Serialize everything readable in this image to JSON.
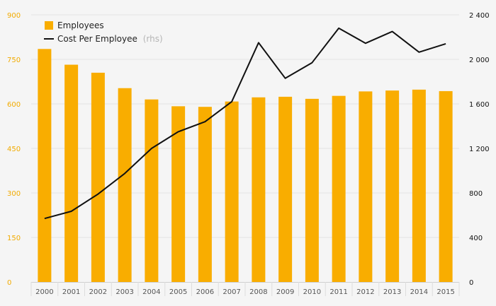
{
  "chart_data": {
    "type": "bar+line",
    "categories": [
      "2000",
      "2001",
      "2002",
      "2003",
      "2004",
      "2005",
      "2006",
      "2007",
      "2008",
      "2009",
      "2010",
      "2011",
      "2012",
      "2013",
      "2014",
      "2015"
    ],
    "series": [
      {
        "name": "Employees",
        "type": "bar",
        "axis": "left",
        "color": "#f9ad00",
        "values": [
          785,
          732,
          705,
          653,
          615,
          592,
          590,
          608,
          622,
          624,
          617,
          627,
          642,
          645,
          648,
          643
        ]
      },
      {
        "name": "Cost Per Employee",
        "type": "line",
        "axis": "right",
        "color": "#111111",
        "values": [
          570,
          635,
          790,
          975,
          1200,
          1350,
          1440,
          1620,
          2150,
          1830,
          1970,
          2280,
          2145,
          2250,
          2065,
          2140
        ]
      }
    ],
    "legend": {
      "position": "top-left",
      "items": [
        {
          "label": "Employees",
          "suffix": ""
        },
        {
          "label": "Cost Per Employee",
          "suffix": "(rhs)"
        }
      ]
    },
    "y_left": {
      "min": 0,
      "max": 900,
      "ticks": [
        0,
        150,
        300,
        450,
        600,
        750,
        900
      ],
      "tick_labels": [
        "0",
        "150",
        "300",
        "450",
        "600",
        "750",
        "900"
      ],
      "color": "#f2ab00"
    },
    "y_right": {
      "min": 0,
      "max": 2400,
      "ticks": [
        0,
        400,
        800,
        1200,
        1600,
        2000,
        2400
      ],
      "tick_labels": [
        "0",
        "400",
        "800",
        "1 200",
        "1 600",
        "2 000",
        "2 400"
      ],
      "color": "#111111"
    },
    "grid": true,
    "title": "",
    "xlabel": "",
    "ylabel": ""
  }
}
